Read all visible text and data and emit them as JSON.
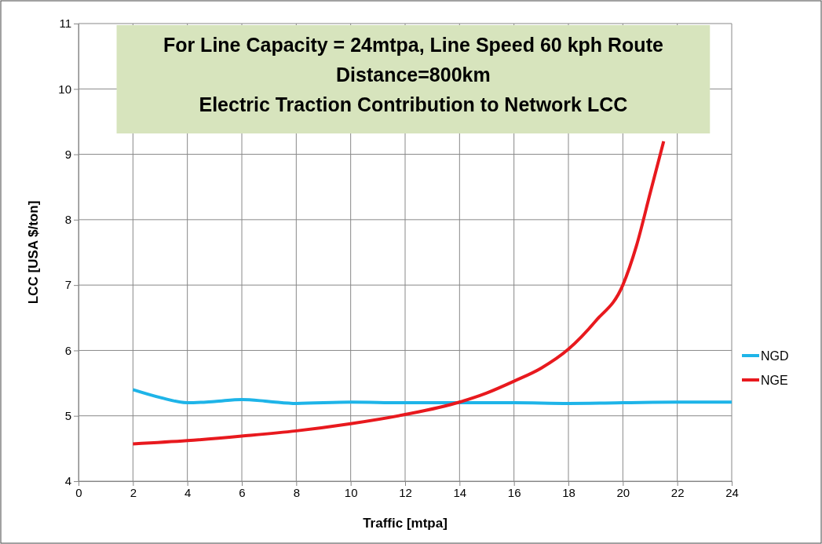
{
  "chart_data": {
    "type": "line",
    "title": "For Line Capacity = 24mtpa, Line Speed 60 kph Route Distance=800km",
    "subtitle": "Electric Traction Contribution to Network LCC",
    "xlabel": "Traffic [mtpa]",
    "ylabel": "LCC [USA $/ton]",
    "xlim": [
      0,
      24
    ],
    "xticks": [
      0,
      2,
      4,
      6,
      8,
      10,
      12,
      14,
      16,
      18,
      20,
      22,
      24
    ],
    "ylim": [
      4,
      11
    ],
    "yticks": [
      4,
      5,
      6,
      7,
      8,
      9,
      10,
      11
    ],
    "grid": true,
    "legend": "right",
    "marker": "none",
    "line_style": "solid",
    "series": [
      {
        "name": "NGD",
        "color": "#1eb4e8",
        "x": [
          2,
          3,
          4,
          5,
          6,
          7,
          8,
          10,
          12,
          14,
          16,
          18,
          20,
          22,
          24
        ],
        "values": [
          5.4,
          5.28,
          5.2,
          5.22,
          5.25,
          5.22,
          5.19,
          5.21,
          5.2,
          5.2,
          5.2,
          5.19,
          5.2,
          5.21,
          5.21
        ]
      },
      {
        "name": "NGE",
        "color": "#e8191e",
        "x": [
          2,
          4,
          6,
          8,
          10,
          12,
          14,
          15,
          16,
          17,
          18,
          19,
          20,
          20.5,
          21,
          21.5
        ],
        "values": [
          4.57,
          4.62,
          4.69,
          4.77,
          4.88,
          5.02,
          5.21,
          5.35,
          5.53,
          5.73,
          6.02,
          6.45,
          7.0,
          7.6,
          8.4,
          9.2
        ]
      }
    ]
  }
}
